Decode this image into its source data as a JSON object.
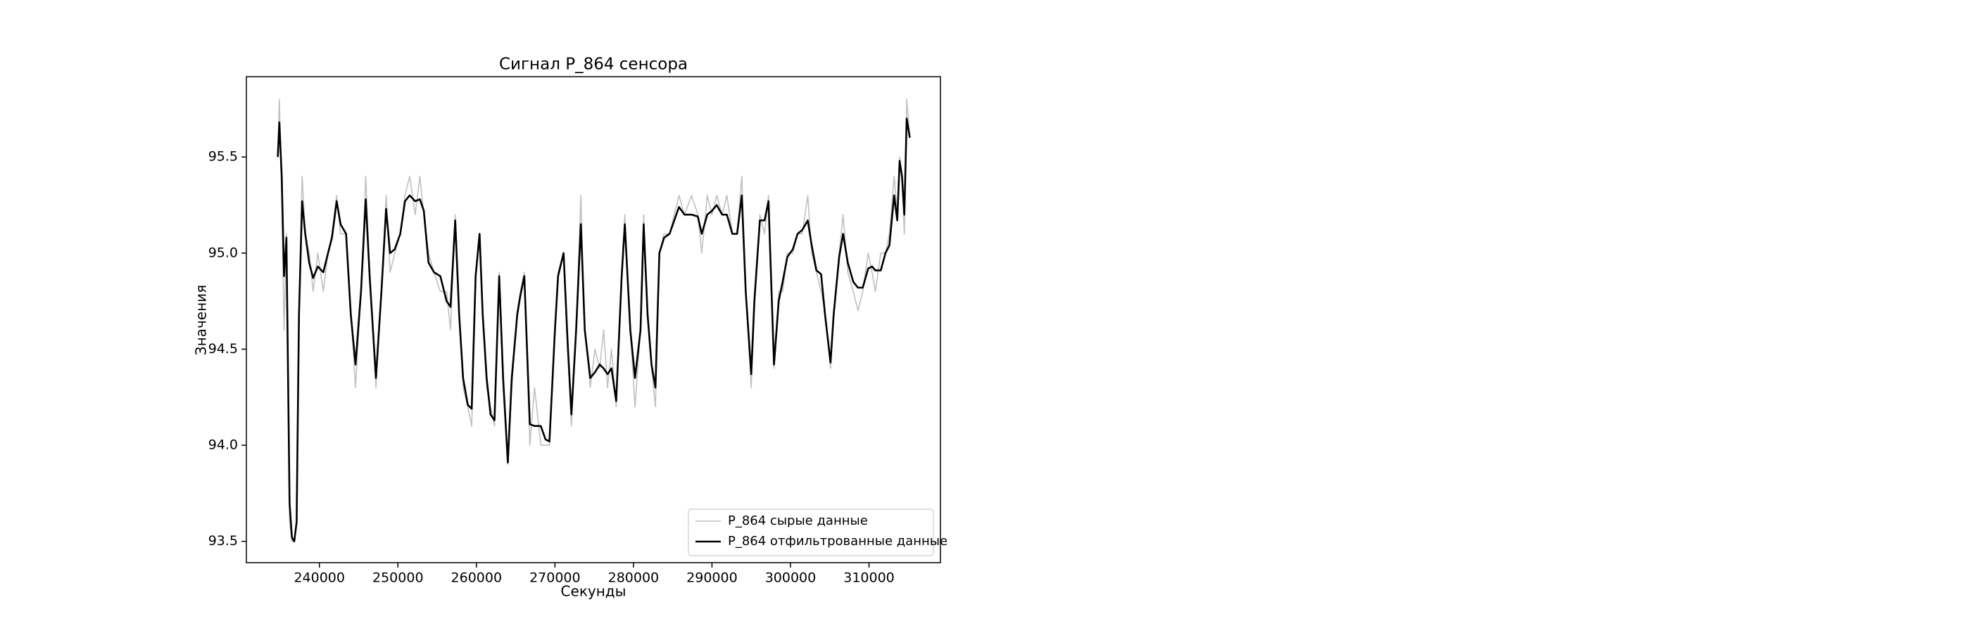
{
  "chart_data": {
    "type": "line",
    "title": "Сигнал P_864 сенсора",
    "xlabel": "Секунды",
    "ylabel": "Значения",
    "x": [
      234700,
      234900,
      235200,
      235500,
      235800,
      236200,
      236500,
      236800,
      237100,
      237400,
      237800,
      238200,
      238700,
      239200,
      239800,
      240500,
      241100,
      241600,
      242200,
      242700,
      243400,
      244000,
      244600,
      245300,
      245900,
      246400,
      247200,
      247900,
      248500,
      249000,
      249600,
      250300,
      250900,
      251500,
      252200,
      252800,
      253300,
      253900,
      254600,
      255400,
      256200,
      256700,
      257300,
      257800,
      258300,
      258900,
      259400,
      259900,
      260400,
      260800,
      261300,
      261800,
      262300,
      262900,
      263400,
      264000,
      264500,
      265200,
      265600,
      266100,
      266800,
      267400,
      268200,
      268800,
      269300,
      270000,
      270400,
      271100,
      271600,
      272100,
      272700,
      273300,
      273800,
      274500,
      275100,
      275700,
      276200,
      276700,
      277200,
      277800,
      278500,
      278900,
      279600,
      280200,
      280900,
      281300,
      281800,
      282300,
      282800,
      283300,
      283900,
      284600,
      285200,
      285800,
      286500,
      287400,
      288200,
      288700,
      289400,
      290000,
      290600,
      291300,
      291900,
      292600,
      293200,
      293800,
      294300,
      295000,
      295400,
      296100,
      296700,
      297200,
      297900,
      298500,
      299000,
      299600,
      300300,
      300900,
      301500,
      302200,
      302700,
      303300,
      303900,
      304400,
      305100,
      305500,
      306200,
      306700,
      307300,
      308000,
      308600,
      309200,
      309900,
      310400,
      310800,
      311500,
      312100,
      312600,
      313200,
      313600,
      313900,
      314200,
      314500,
      314800,
      315200
    ],
    "series": [
      {
        "name": "P_864 сырые данные",
        "color": "#c0c0c0",
        "values": [
          95.5,
          95.8,
          95.3,
          94.6,
          95.1,
          93.6,
          93.5,
          93.5,
          93.6,
          94.7,
          95.4,
          95.1,
          95.0,
          94.8,
          95.0,
          94.8,
          95.0,
          95.1,
          95.3,
          95.1,
          95.1,
          94.7,
          94.3,
          94.8,
          95.4,
          94.9,
          94.3,
          94.8,
          95.3,
          94.9,
          95.0,
          95.1,
          95.3,
          95.4,
          95.2,
          95.4,
          95.2,
          95.0,
          94.9,
          94.8,
          94.8,
          94.6,
          95.2,
          94.7,
          94.3,
          94.2,
          94.1,
          94.9,
          95.1,
          94.7,
          94.3,
          94.2,
          94.1,
          94.9,
          94.3,
          93.9,
          94.3,
          94.7,
          94.8,
          94.9,
          94.0,
          94.3,
          94.0,
          94.0,
          94.0,
          94.6,
          94.9,
          95.0,
          94.5,
          94.1,
          94.6,
          95.3,
          94.6,
          94.3,
          94.5,
          94.4,
          94.6,
          94.3,
          94.5,
          94.2,
          94.9,
          95.2,
          94.6,
          94.2,
          94.6,
          95.2,
          94.7,
          94.4,
          94.2,
          95.0,
          95.1,
          95.1,
          95.2,
          95.3,
          95.2,
          95.3,
          95.2,
          95.0,
          95.3,
          95.2,
          95.3,
          95.2,
          95.3,
          95.1,
          95.1,
          95.4,
          94.8,
          94.3,
          94.7,
          95.2,
          95.1,
          95.3,
          94.4,
          94.8,
          94.8,
          95.0,
          95.0,
          95.1,
          95.1,
          95.3,
          95.0,
          94.9,
          94.8,
          94.7,
          94.4,
          94.7,
          95.0,
          95.2,
          94.9,
          94.8,
          94.7,
          94.8,
          95.0,
          94.9,
          94.8,
          95.0,
          95.0,
          95.1,
          95.4,
          95.2,
          95.5,
          95.4,
          95.1,
          95.8,
          95.6
        ]
      },
      {
        "name": "P_864 отфильтрованные данные",
        "color": "#000000",
        "values": [
          95.5,
          95.68,
          95.4,
          94.88,
          95.08,
          93.7,
          93.52,
          93.5,
          93.6,
          94.68,
          95.27,
          95.1,
          94.95,
          94.87,
          94.93,
          94.9,
          95.0,
          95.08,
          95.27,
          95.15,
          95.1,
          94.68,
          94.42,
          94.8,
          95.28,
          94.88,
          94.35,
          94.8,
          95.23,
          95.0,
          95.02,
          95.1,
          95.27,
          95.3,
          95.27,
          95.28,
          95.22,
          94.95,
          94.9,
          94.88,
          94.75,
          94.72,
          95.17,
          94.68,
          94.35,
          94.21,
          94.19,
          94.88,
          95.1,
          94.68,
          94.35,
          94.16,
          94.13,
          94.88,
          94.35,
          93.91,
          94.35,
          94.68,
          94.78,
          94.88,
          94.11,
          94.1,
          94.1,
          94.03,
          94.02,
          94.6,
          94.88,
          95.0,
          94.55,
          94.16,
          94.6,
          95.15,
          94.6,
          94.35,
          94.38,
          94.42,
          94.4,
          94.37,
          94.4,
          94.23,
          94.88,
          95.15,
          94.6,
          94.35,
          94.6,
          95.15,
          94.68,
          94.42,
          94.3,
          95.0,
          95.08,
          95.1,
          95.17,
          95.24,
          95.2,
          95.2,
          95.19,
          95.1,
          95.2,
          95.22,
          95.25,
          95.2,
          95.2,
          95.1,
          95.1,
          95.3,
          94.8,
          94.37,
          94.75,
          95.17,
          95.17,
          95.27,
          94.42,
          94.75,
          94.85,
          94.98,
          95.02,
          95.1,
          95.12,
          95.17,
          95.04,
          94.91,
          94.89,
          94.68,
          94.43,
          94.68,
          94.98,
          95.1,
          94.95,
          94.85,
          94.82,
          94.82,
          94.92,
          94.93,
          94.91,
          94.91,
          95.0,
          95.04,
          95.3,
          95.17,
          95.48,
          95.4,
          95.2,
          95.7,
          95.6
        ]
      }
    ],
    "xlim": [
      230700,
      319100
    ],
    "ylim": [
      93.389,
      95.918
    ],
    "xticks": [
      240000,
      250000,
      260000,
      270000,
      280000,
      290000,
      300000,
      310000
    ],
    "yticks": [
      93.5,
      {
        "value": 94,
        "label": "94.0"
      },
      94.5,
      {
        "value": 95,
        "label": "95.0"
      },
      95.5
    ],
    "legend": "lower right"
  }
}
